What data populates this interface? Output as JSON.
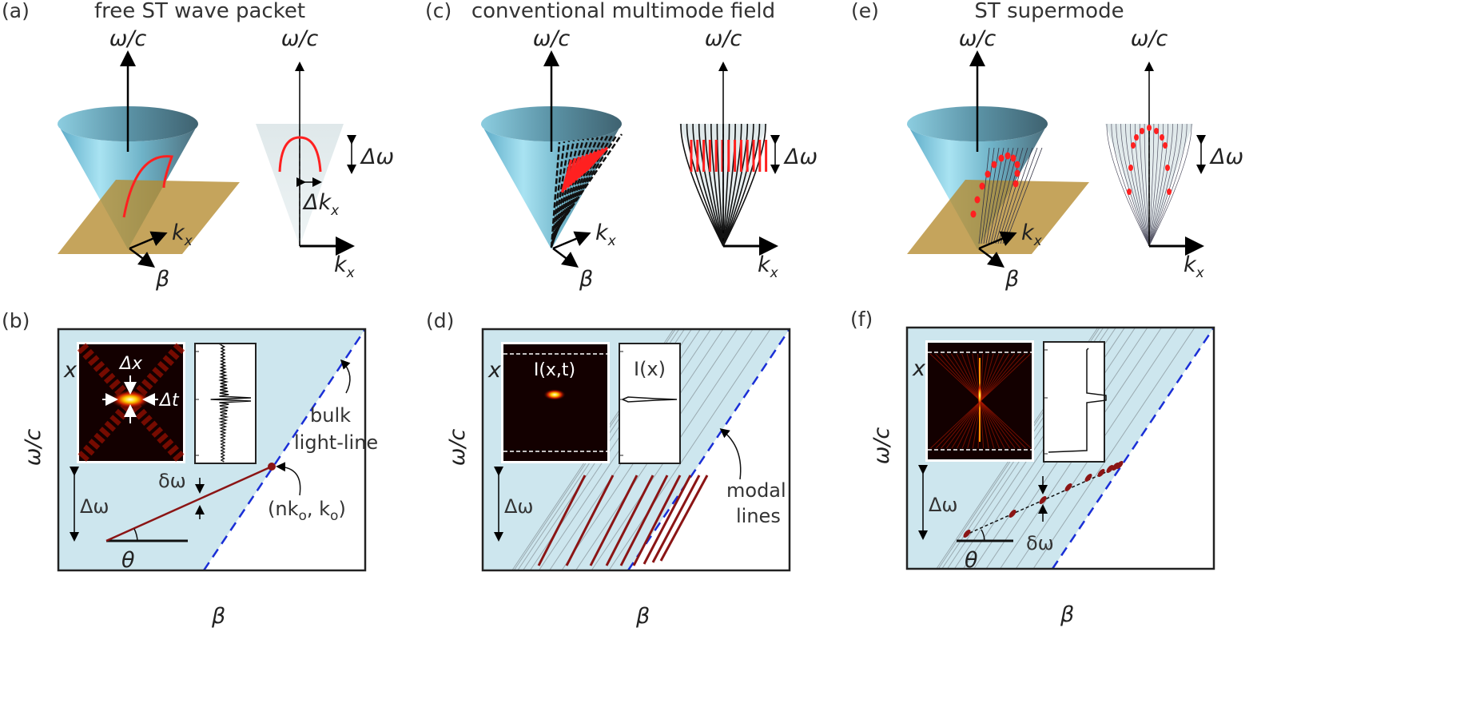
{
  "panels": {
    "a": {
      "label": "(a)",
      "title": "free ST wave packet"
    },
    "b": {
      "label": "(b)"
    },
    "c": {
      "label": "(c)",
      "title": "conventional multimode field"
    },
    "d": {
      "label": "(d)"
    },
    "e": {
      "label": "(e)",
      "title": "ST supermode"
    },
    "f": {
      "label": "(f)"
    }
  },
  "axes": {
    "omega_c": "ω/c",
    "k": "k",
    "x_sub": "x",
    "beta": "β",
    "x": "x",
    "t": "t"
  },
  "annotations": {
    "Delta_omega": "Δω",
    "Delta_k": "Δk",
    "delta_omega": "δω",
    "theta": "θ",
    "Delta_x": "Δx",
    "Delta_t": "Δt",
    "bulk": "bulk",
    "light_line": "light-line",
    "point_open": "(nk",
    "point_sub": "o",
    "point_mid": ", k",
    "point_close": ")",
    "modal": "modal",
    "lines": "lines",
    "Ixt": "I(x,t)",
    "Ix": "I(x)"
  },
  "colors": {
    "background_panel": "#cde6ee",
    "light_line": "#1a2fd6",
    "trajectory": "#8b1515",
    "spectral_red": "#ff2020",
    "plane": "#b58a2e"
  }
}
